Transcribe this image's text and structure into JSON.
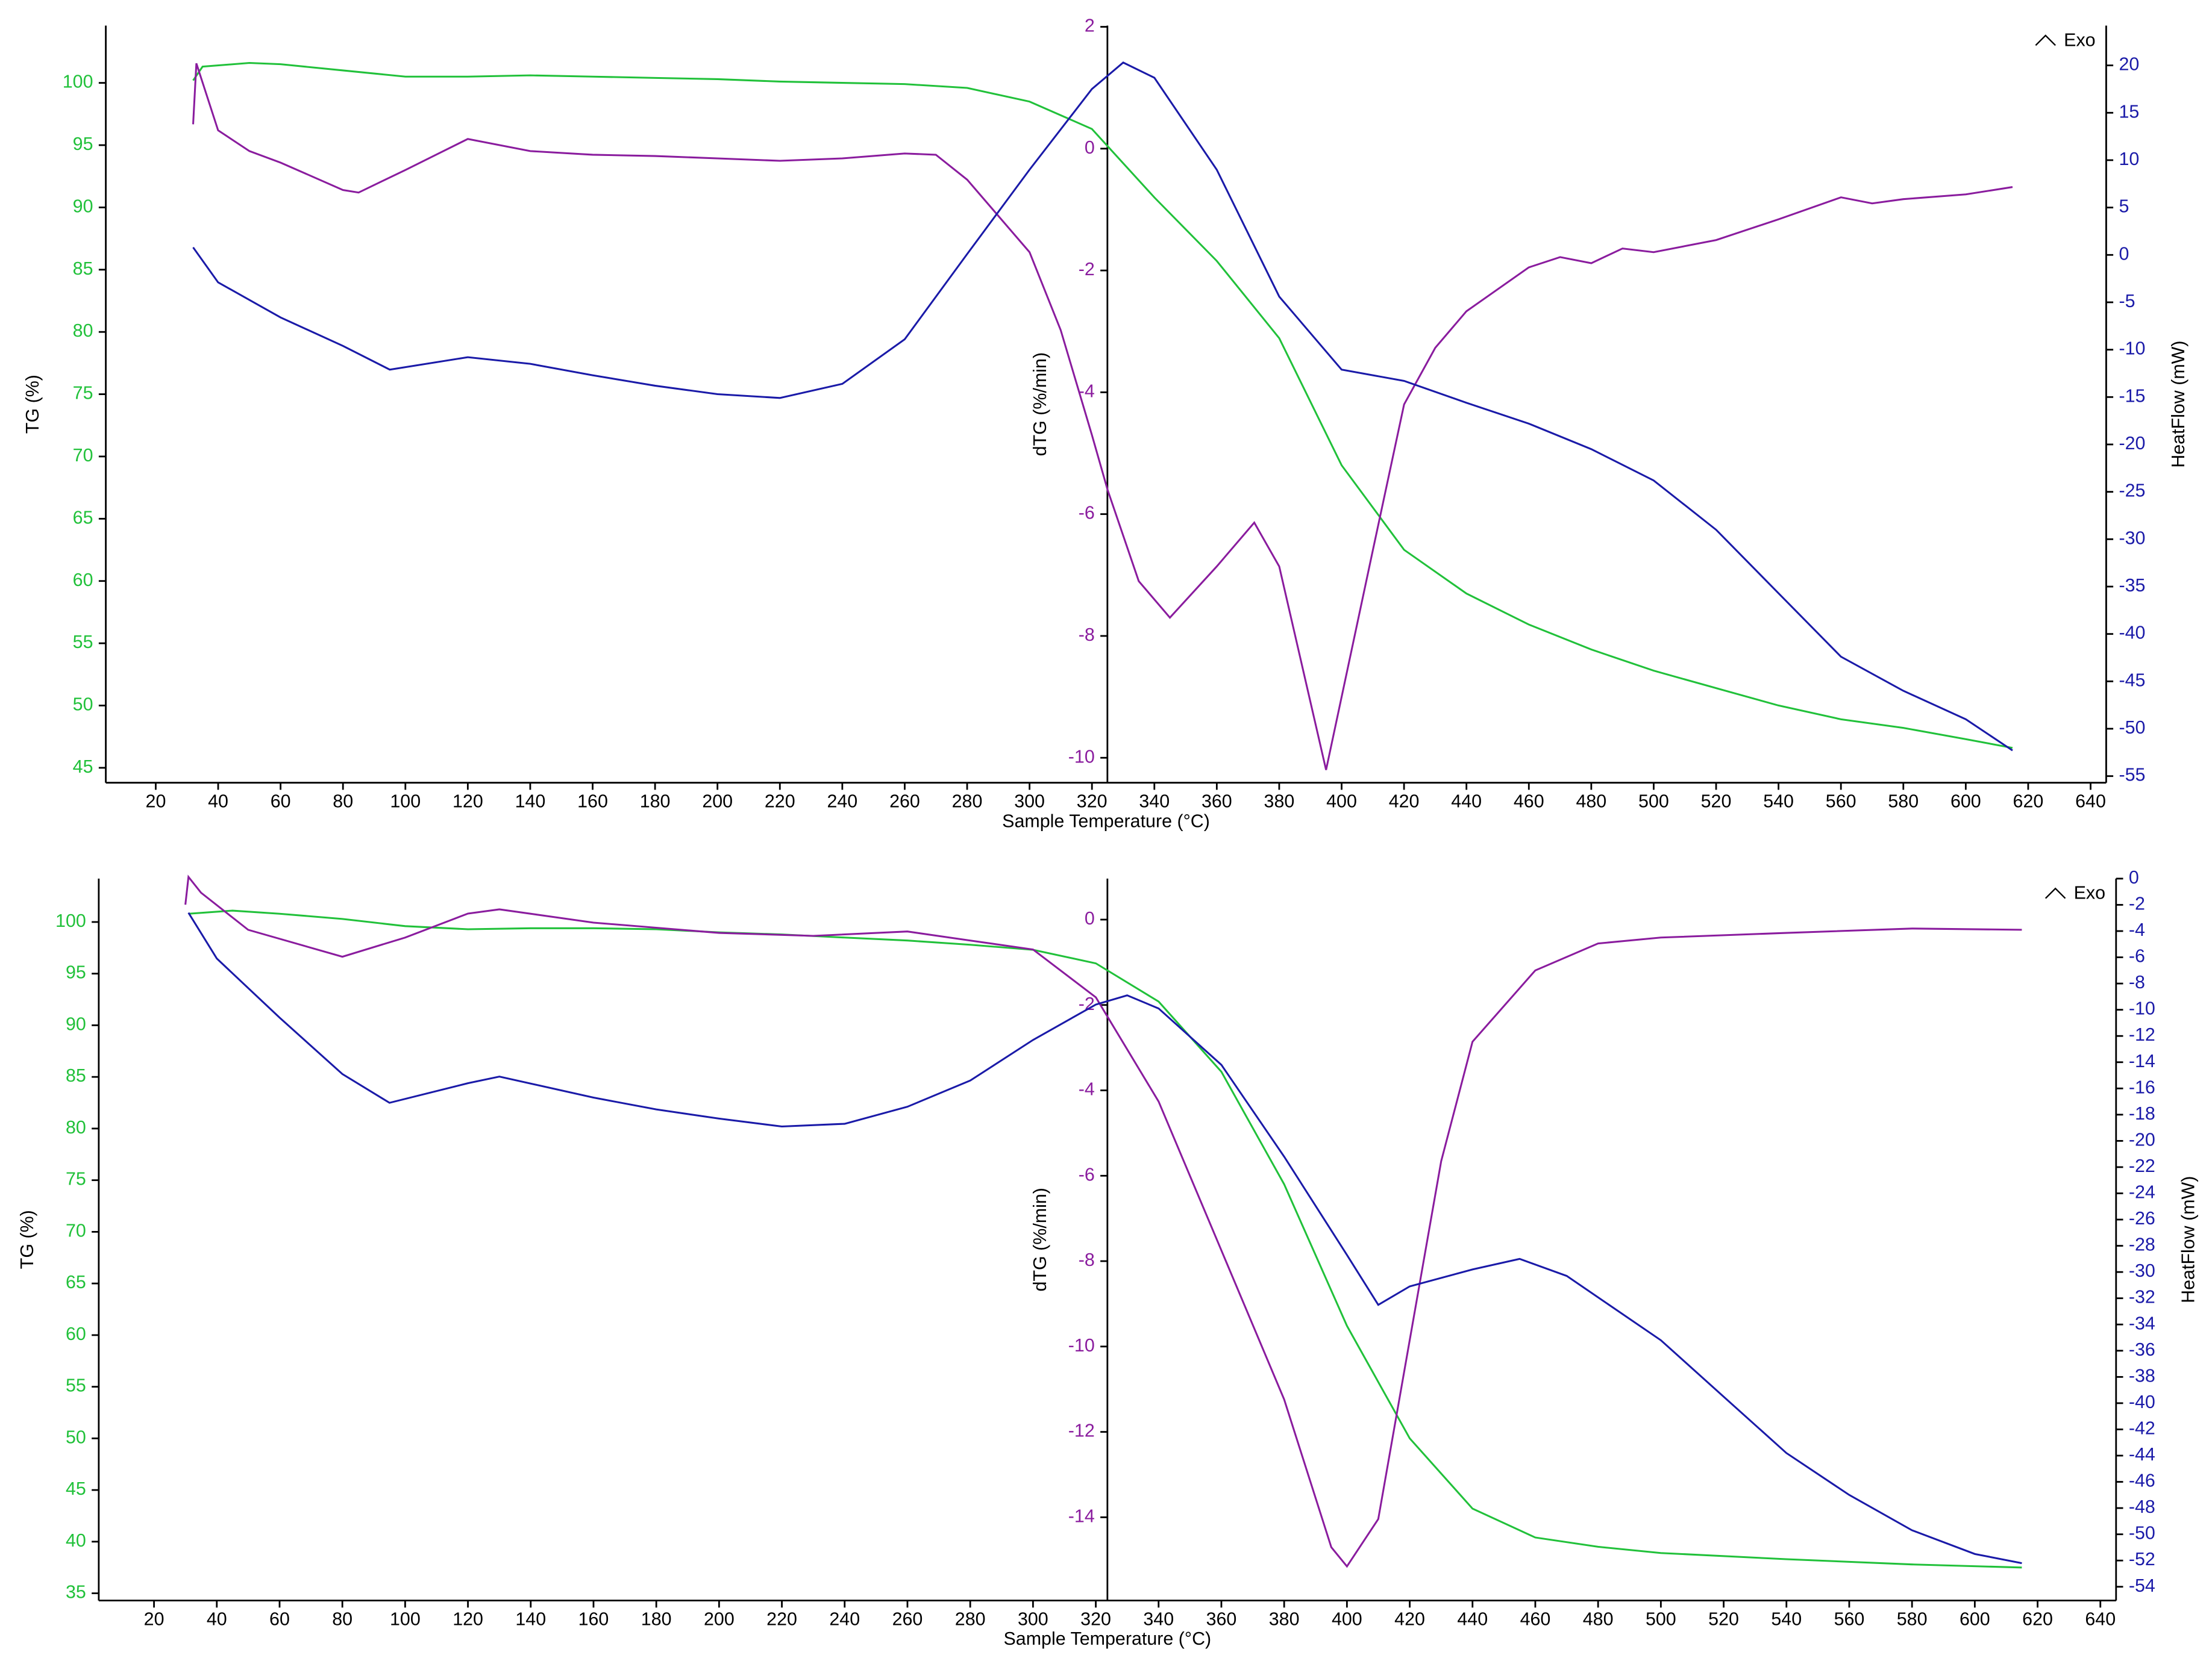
{
  "chart_data": [
    {
      "type": "line",
      "xlabel": "Sample Temperature (°C)",
      "ylabel": "TG (%)",
      "y2label": "dTG (%/min)",
      "y3label": "HeatFlow (mW)",
      "annotation": "Exo",
      "xlim": [
        4,
        645
      ],
      "xticks": [
        20,
        40,
        60,
        80,
        100,
        120,
        140,
        160,
        180,
        200,
        220,
        240,
        260,
        280,
        300,
        320,
        340,
        360,
        380,
        400,
        420,
        440,
        460,
        480,
        500,
        520,
        540,
        560,
        580,
        600,
        620,
        640
      ],
      "ylim": [
        43.8,
        104.6
      ],
      "yticks": [
        45,
        50,
        55,
        60,
        65,
        70,
        75,
        80,
        85,
        90,
        95,
        100
      ],
      "y2lim": [
        -10.41,
        2.02
      ],
      "y2ticks": [
        2,
        0,
        -2,
        -4,
        -6,
        -8,
        -10
      ],
      "y3lim": [
        -55.7,
        24.2
      ],
      "y3ticks": [
        20,
        15,
        10,
        5,
        0,
        -5,
        -10,
        -15,
        -20,
        -25,
        -30,
        -35,
        -40,
        -45,
        -50,
        -55
      ],
      "series": [
        {
          "axis": "y",
          "color": "#21c13a",
          "x": [
            32,
            35,
            50,
            60,
            80,
            100,
            120,
            140,
            160,
            180,
            200,
            220,
            240,
            260,
            280,
            300,
            320,
            340,
            360,
            380,
            400,
            420,
            440,
            460,
            480,
            500,
            520,
            540,
            560,
            580,
            600,
            615
          ],
          "values": [
            100.2,
            101.3,
            101.6,
            101.5,
            101.0,
            100.5,
            100.5,
            100.6,
            100.5,
            100.4,
            100.3,
            100.1,
            100.0,
            99.9,
            99.6,
            98.5,
            96.3,
            90.8,
            85.7,
            79.5,
            69.3,
            62.5,
            59.0,
            56.5,
            54.5,
            52.8,
            51.4,
            50.0,
            48.9,
            48.2,
            47.3,
            46.6
          ]
        },
        {
          "axis": "y2",
          "color": "#8a1c9e",
          "x": [
            32,
            33,
            40,
            50,
            60,
            80,
            85,
            100,
            120,
            140,
            160,
            180,
            200,
            220,
            240,
            260,
            270,
            280,
            300,
            310,
            320,
            325,
            335,
            345,
            360,
            372,
            380,
            395,
            410,
            420,
            430,
            440,
            460,
            470,
            480,
            490,
            500,
            520,
            540,
            560,
            570,
            580,
            600,
            615
          ],
          "values": [
            0.4,
            1.4,
            0.3,
            -0.04,
            -0.23,
            -0.68,
            -0.72,
            -0.35,
            0.16,
            -0.04,
            -0.1,
            -0.12,
            -0.16,
            -0.2,
            -0.16,
            -0.08,
            -0.1,
            -0.51,
            -1.7,
            -2.98,
            -4.7,
            -5.6,
            -7.1,
            -7.7,
            -6.86,
            -6.14,
            -6.86,
            -10.2,
            -6.6,
            -4.2,
            -3.27,
            -2.67,
            -1.95,
            -1.78,
            -1.88,
            -1.64,
            -1.7,
            -1.5,
            -1.16,
            -0.8,
            -0.9,
            -0.83,
            -0.75,
            -0.63
          ]
        },
        {
          "axis": "y3",
          "color": "#1a1aa8",
          "x": [
            32,
            40,
            60,
            80,
            95,
            120,
            140,
            160,
            180,
            200,
            220,
            240,
            260,
            280,
            300,
            320,
            330,
            340,
            360,
            380,
            400,
            420,
            440,
            460,
            480,
            500,
            520,
            540,
            560,
            580,
            600,
            615
          ],
          "values": [
            0.8,
            -2.9,
            -6.6,
            -9.6,
            -12.1,
            -10.8,
            -11.5,
            -12.7,
            -13.8,
            -14.7,
            -15.1,
            -13.6,
            -8.9,
            0.1,
            9,
            17.5,
            20.3,
            18.7,
            9,
            -4.4,
            -12.1,
            -13.3,
            -15.6,
            -17.8,
            -20.5,
            -23.8,
            -29,
            -35.7,
            -42.4,
            -46,
            -49,
            -52.3
          ]
        }
      ]
    },
    {
      "type": "line",
      "xlabel": "Sample Temperature (°C)",
      "ylabel": "TG (%)",
      "y2label": "dTG (%/min)",
      "y3label": "HeatFlow (mW)",
      "annotation": "Exo",
      "xlim": [
        2.4,
        645
      ],
      "xticks": [
        20,
        40,
        60,
        80,
        100,
        120,
        140,
        160,
        180,
        200,
        220,
        240,
        260,
        280,
        300,
        320,
        340,
        360,
        380,
        400,
        420,
        440,
        460,
        480,
        500,
        520,
        540,
        560,
        580,
        600,
        620,
        640
      ],
      "ylim": [
        34.3,
        104.2
      ],
      "yticks": [
        35,
        40,
        45,
        50,
        55,
        60,
        65,
        70,
        75,
        80,
        85,
        90,
        95,
        100
      ],
      "y2lim": [
        -15.95,
        0.96
      ],
      "y2ticks": [
        0,
        -2,
        -4,
        -6,
        -8,
        -10,
        -12,
        -14
      ],
      "y3lim": [
        -55.05,
        0
      ],
      "y3ticks": [
        0,
        -2,
        -4,
        -6,
        -8,
        -10,
        -12,
        -14,
        -16,
        -18,
        -20,
        -22,
        -24,
        -26,
        -28,
        -30,
        -32,
        -34,
        -36,
        -38,
        -40,
        -42,
        -44,
        -46,
        -48,
        -50,
        -52,
        -54
      ],
      "series": [
        {
          "axis": "y",
          "color": "#21c13a",
          "x": [
            31,
            45,
            60,
            80,
            100,
            120,
            140,
            160,
            180,
            200,
            220,
            240,
            260,
            280,
            300,
            320,
            340,
            360,
            380,
            400,
            420,
            440,
            460,
            480,
            500,
            540,
            580,
            615
          ],
          "values": [
            100.8,
            101.1,
            100.8,
            100.3,
            99.6,
            99.3,
            99.4,
            99.4,
            99.3,
            99.0,
            98.8,
            98.5,
            98.2,
            97.8,
            97.3,
            96.0,
            92.3,
            85.5,
            74.6,
            60.9,
            50.0,
            43.2,
            40.4,
            39.5,
            38.9,
            38.3,
            37.8,
            37.5
          ]
        },
        {
          "axis": "y2",
          "color": "#8a1c9e",
          "x": [
            30,
            31,
            35,
            50,
            80,
            100,
            120,
            130,
            160,
            200,
            230,
            260,
            280,
            300,
            320,
            340,
            360,
            380,
            395,
            400,
            410,
            420,
            430,
            440,
            460,
            480,
            500,
            540,
            580,
            615
          ],
          "values": [
            0.35,
            1.0,
            0.63,
            -0.24,
            -0.87,
            -0.42,
            0.14,
            0.24,
            -0.07,
            -0.31,
            -0.38,
            -0.28,
            -0.49,
            -0.7,
            -1.82,
            -4.26,
            -7.75,
            -11.24,
            -14.7,
            -15.15,
            -14.04,
            -9.85,
            -5.66,
            -2.86,
            -1.19,
            -0.56,
            -0.42,
            -0.31,
            -0.21,
            -0.24
          ]
        },
        {
          "axis": "y3",
          "color": "#1a1aa8",
          "x": [
            31,
            40,
            60,
            80,
            95,
            120,
            130,
            160,
            180,
            200,
            220,
            240,
            260,
            280,
            300,
            320,
            330,
            340,
            360,
            380,
            400,
            410,
            420,
            440,
            455,
            470,
            500,
            520,
            540,
            560,
            580,
            600,
            615
          ],
          "values": [
            -2.6,
            -6.1,
            -10.6,
            -14.9,
            -17.1,
            -15.6,
            -15.1,
            -16.7,
            -17.6,
            -18.3,
            -18.9,
            -18.7,
            -17.4,
            -15.4,
            -12.3,
            -9.6,
            -8.9,
            -9.9,
            -14.2,
            -21.2,
            -28.7,
            -32.5,
            -31.1,
            -29.8,
            -29,
            -30.3,
            -35.2,
            -39.5,
            -43.8,
            -47,
            -49.7,
            -51.5,
            -52.2
          ]
        }
      ]
    }
  ]
}
